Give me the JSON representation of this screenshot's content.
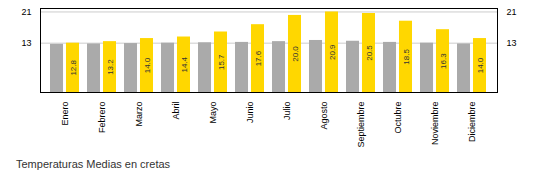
{
  "chart_data": {
    "type": "bar",
    "title": "Temperaturas Medias en cretas",
    "categories": [
      "Enero",
      "Febrero",
      "Marzo",
      "Abril",
      "Mayo",
      "Junio",
      "Julio",
      "Agosto",
      "Septiembre",
      "Octubre",
      "Noviembre",
      "Diciembre"
    ],
    "series": [
      {
        "color": "#AAAAAA",
        "values": [
          12.5,
          12.6,
          12.7,
          12.8,
          12.9,
          13.0,
          13.2,
          13.5,
          13.3,
          13.0,
          12.8,
          12.6
        ]
      },
      {
        "color": "#FFD700",
        "values": [
          12.8,
          13.2,
          14.0,
          14.4,
          15.7,
          17.6,
          20.0,
          20.9,
          20.5,
          18.5,
          16.3,
          14.0
        ],
        "data_labels": true,
        "value_labels": [
          "12.8",
          "13.2",
          "14.0",
          "14.4",
          "15.7",
          "17.6",
          "20.0",
          "20.9",
          "20.5",
          "18.5",
          "16.3",
          "14.0"
        ]
      }
    ],
    "ylim": [
      0,
      21.8
    ],
    "yticks": [
      12.8,
      20.9
    ],
    "grid": true
  }
}
